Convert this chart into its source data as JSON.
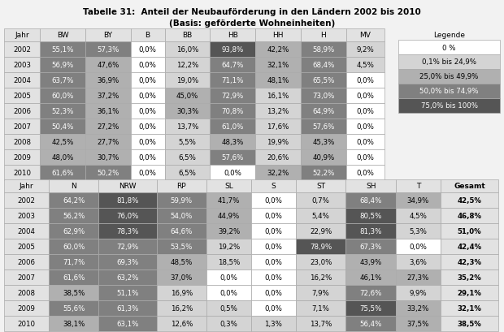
{
  "title_line1": "Tabelle 31:  Anteil der Neubauförderung in den Ländern 2002 bis 2010",
  "title_line2": "(Basis: geförderte Wohneinheiten)",
  "background_color": "#f2f2f2",
  "table1": {
    "headers": [
      "Jahr",
      "BW",
      "BY",
      "B",
      "BB",
      "HB",
      "HH",
      "H",
      "MV"
    ],
    "rows": [
      [
        "2002",
        "55,1%",
        "57,3%",
        "0,0%",
        "16,0%",
        "93,8%",
        "42,2%",
        "58,9%",
        "9,2%"
      ],
      [
        "2003",
        "56,9%",
        "47,6%",
        "0,0%",
        "12,2%",
        "64,7%",
        "32,1%",
        "68,4%",
        "4,5%"
      ],
      [
        "2004",
        "63,7%",
        "36,9%",
        "0,0%",
        "19,0%",
        "71,1%",
        "48,1%",
        "65,5%",
        "0,0%"
      ],
      [
        "2005",
        "60,0%",
        "37,2%",
        "0,0%",
        "45,0%",
        "72,9%",
        "16,1%",
        "73,0%",
        "0,0%"
      ],
      [
        "2006",
        "52,3%",
        "36,1%",
        "0,0%",
        "30,3%",
        "70,8%",
        "13,2%",
        "64,9%",
        "0,0%"
      ],
      [
        "2007",
        "50,4%",
        "27,2%",
        "0,0%",
        "13,7%",
        "61,0%",
        "17,6%",
        "57,6%",
        "0,0%"
      ],
      [
        "2008",
        "42,5%",
        "27,7%",
        "0,0%",
        "5,5%",
        "48,3%",
        "19,9%",
        "45,3%",
        "0,0%"
      ],
      [
        "2009",
        "48,0%",
        "30,7%",
        "0,0%",
        "6,5%",
        "57,6%",
        "20,6%",
        "40,9%",
        "0,0%"
      ],
      [
        "2010",
        "61,6%",
        "50,2%",
        "0,0%",
        "6,5%",
        "0,0%",
        "32,2%",
        "52,2%",
        "0,0%"
      ]
    ],
    "values": [
      [
        55.1,
        57.3,
        0.0,
        16.0,
        93.8,
        42.2,
        58.9,
        9.2
      ],
      [
        56.9,
        47.6,
        0.0,
        12.2,
        64.7,
        32.1,
        68.4,
        4.5
      ],
      [
        63.7,
        36.9,
        0.0,
        19.0,
        71.1,
        48.1,
        65.5,
        0.0
      ],
      [
        60.0,
        37.2,
        0.0,
        45.0,
        72.9,
        16.1,
        73.0,
        0.0
      ],
      [
        52.3,
        36.1,
        0.0,
        30.3,
        70.8,
        13.2,
        64.9,
        0.0
      ],
      [
        50.4,
        27.2,
        0.0,
        13.7,
        61.0,
        17.6,
        57.6,
        0.0
      ],
      [
        42.5,
        27.7,
        0.0,
        5.5,
        48.3,
        19.9,
        45.3,
        0.0
      ],
      [
        48.0,
        30.7,
        0.0,
        6.5,
        57.6,
        20.6,
        40.9,
        0.0
      ],
      [
        61.6,
        50.2,
        0.0,
        6.5,
        0.0,
        32.2,
        52.2,
        0.0
      ]
    ]
  },
  "table2": {
    "headers": [
      "Jahr",
      "N",
      "NRW",
      "RP",
      "SL",
      "S",
      "ST",
      "SH",
      "T",
      "Gesamt"
    ],
    "rows": [
      [
        "2002",
        "64,2%",
        "81,8%",
        "59,9%",
        "41,7%",
        "0,0%",
        "0,7%",
        "68,4%",
        "34,9%",
        "42,5%"
      ],
      [
        "2003",
        "56,2%",
        "76,0%",
        "54,0%",
        "44,9%",
        "0,0%",
        "5,4%",
        "80,5%",
        "4,5%",
        "46,8%"
      ],
      [
        "2004",
        "62,9%",
        "78,3%",
        "64,6%",
        "39,2%",
        "0,0%",
        "22,9%",
        "81,3%",
        "5,3%",
        "51,0%"
      ],
      [
        "2005",
        "60,0%",
        "72,9%",
        "53,5%",
        "19,2%",
        "0,0%",
        "78,9%",
        "67,3%",
        "0,0%",
        "42,4%"
      ],
      [
        "2006",
        "71,7%",
        "69,3%",
        "48,5%",
        "18,5%",
        "0,0%",
        "23,0%",
        "43,9%",
        "3,6%",
        "42,3%"
      ],
      [
        "2007",
        "61,6%",
        "63,2%",
        "37,0%",
        "0,0%",
        "0,0%",
        "16,2%",
        "46,1%",
        "27,3%",
        "35,2%"
      ],
      [
        "2008",
        "38,5%",
        "51,1%",
        "16,9%",
        "0,0%",
        "0,0%",
        "7,9%",
        "72,6%",
        "9,9%",
        "29,1%"
      ],
      [
        "2009",
        "55,6%",
        "61,3%",
        "16,2%",
        "0,5%",
        "0,0%",
        "7,1%",
        "75,5%",
        "33,2%",
        "32,1%"
      ],
      [
        "2010",
        "38,1%",
        "63,1%",
        "12,6%",
        "0,3%",
        "1,3%",
        "13,7%",
        "56,4%",
        "37,5%",
        "38,5%"
      ]
    ],
    "values": [
      [
        64.2,
        81.8,
        59.9,
        41.7,
        0.0,
        0.7,
        68.4,
        34.9,
        42.5
      ],
      [
        56.2,
        76.0,
        54.0,
        44.9,
        0.0,
        5.4,
        80.5,
        4.5,
        46.8
      ],
      [
        62.9,
        78.3,
        64.6,
        39.2,
        0.0,
        22.9,
        81.3,
        5.3,
        51.0
      ],
      [
        60.0,
        72.9,
        53.5,
        19.2,
        0.0,
        78.9,
        67.3,
        0.0,
        42.4
      ],
      [
        71.7,
        69.3,
        48.5,
        18.5,
        0.0,
        23.0,
        43.9,
        3.6,
        42.3
      ],
      [
        61.6,
        63.2,
        37.0,
        0.0,
        0.0,
        16.2,
        46.1,
        27.3,
        35.2
      ],
      [
        38.5,
        51.1,
        16.9,
        0.0,
        0.0,
        7.9,
        72.6,
        9.9,
        29.1
      ],
      [
        55.6,
        61.3,
        16.2,
        0.5,
        0.0,
        7.1,
        75.5,
        33.2,
        32.1
      ],
      [
        38.1,
        63.1,
        12.6,
        0.3,
        1.3,
        13.7,
        56.4,
        37.5,
        38.5
      ]
    ]
  },
  "legend": {
    "labels": [
      "0 %",
      "0,1% bis 24,9%",
      "25,0% bis 49,9%",
      "50,0% bis 74,9%",
      "75,0% bis 100%"
    ],
    "colors": [
      "#ffffff",
      "#d4d4d4",
      "#b0b0b0",
      "#808080",
      "#555555"
    ]
  },
  "color_zero": "#ffffff",
  "color_low": "#d4d4d4",
  "color_mid": "#b0b0b0",
  "color_high": "#808080",
  "color_veryhigh": "#555555",
  "header_bg": "#e2e2e2",
  "border_color": "#aaaaaa",
  "text_color": "#000000",
  "font_size_title": 7.5,
  "font_size_header": 6.5,
  "font_size_cell": 6.2
}
